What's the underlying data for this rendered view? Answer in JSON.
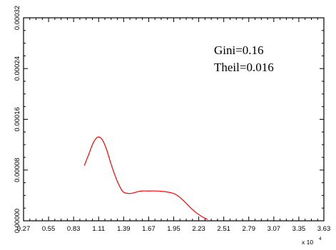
{
  "chart_data": {
    "type": "line",
    "title": "",
    "xlabel": "",
    "ylabel": "",
    "x_multiplier": {
      "base": "x 10",
      "exponent": "4"
    },
    "xlim": [
      0.27,
      3.63
    ],
    "ylim": [
      0,
      0.00032
    ],
    "x_ticks": [
      "0.27",
      "0.55",
      "0.83",
      "1.11",
      "1.39",
      "1.67",
      "1.95",
      "2.23",
      "2.51",
      "2.79",
      "3.07",
      "3.35",
      "3.63"
    ],
    "y_ticks": [
      "0.00000",
      "0.00008",
      "0.00016",
      "0.00024",
      "0.00032"
    ],
    "grid": false,
    "annotations": [
      "Gini=0.16",
      "Theil=0.016"
    ],
    "series": [
      {
        "color": "#ff0000",
        "x": [
          0.95,
          1.0,
          1.05,
          1.1,
          1.15,
          1.2,
          1.25,
          1.3,
          1.35,
          1.39,
          1.45,
          1.5,
          1.55,
          1.6,
          1.67,
          1.75,
          1.85,
          1.95,
          2.0,
          2.05,
          2.1,
          2.15,
          2.2,
          2.25,
          2.3,
          2.33
        ],
        "y": [
          8.7e-05,
          0.000105,
          0.000123,
          0.000132,
          0.000128,
          0.000112,
          8.9e-05,
          6.9e-05,
          5.3e-05,
          4.5e-05,
          4.3e-05,
          4.4e-05,
          4.6e-05,
          4.7e-05,
          4.7e-05,
          4.7e-05,
          4.6e-05,
          4.3e-05,
          3.9e-05,
          3.3e-05,
          2.6e-05,
          1.9e-05,
          1.3e-05,
          8e-06,
          4e-06,
          2e-06
        ]
      }
    ]
  }
}
